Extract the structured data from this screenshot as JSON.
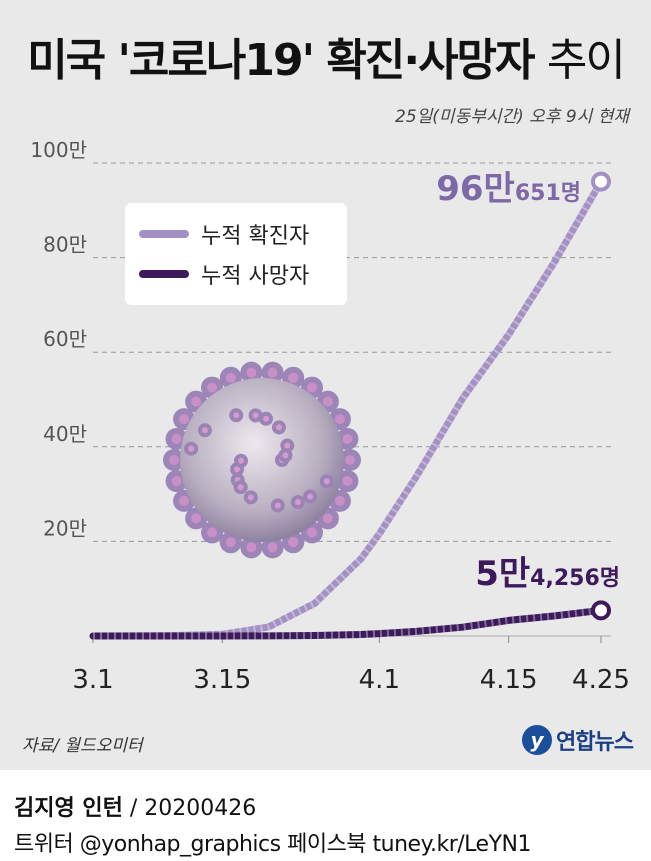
{
  "title_main": "미국 '코로나19' 확진·사망자",
  "title_suffix": "추이",
  "as_of": "25일(미동부시간) 오후 9시 현재",
  "source": "자료/ 월드오미터",
  "logo_text": "연합뉴스",
  "credit": {
    "author": "김지영 인턴",
    "date": " / 20200426"
  },
  "social": "트위터 @yonhap_graphics  페이스북 tuney.kr/LeYN1",
  "colors": {
    "background": "#e9e9e9",
    "confirmed": "#a491c4",
    "deaths": "#3d1a5c",
    "confirmed_label": "#7d68a8",
    "grid": "#999999"
  },
  "illustration": "coronavirus-virus-icon",
  "chart_data": {
    "type": "line",
    "x": [
      "3.1",
      "3.5",
      "3.10",
      "3.15",
      "3.20",
      "3.25",
      "3.30",
      "4.1",
      "4.5",
      "4.10",
      "4.15",
      "4.20",
      "4.25"
    ],
    "xticks": [
      "3.1",
      "3.15",
      "4.1",
      "4.15",
      "4.25"
    ],
    "yticks": [
      "20만",
      "40만",
      "60만",
      "80만",
      "100만"
    ],
    "ylim": [
      0,
      1000000
    ],
    "grid": true,
    "legend_position": "top-left",
    "series": [
      {
        "name": "누적 확진자",
        "values": [
          75,
          220,
          1000,
          3500,
          19000,
          69000,
          163000,
          216000,
          337000,
          502000,
          637000,
          792000,
          960651
        ],
        "end_label_big": "96만",
        "end_label_small": "651명"
      },
      {
        "name": "누적 사망자",
        "values": [
          1,
          11,
          31,
          68,
          260,
          1050,
          3170,
          5150,
          9650,
          18700,
          32900,
          42500,
          54256
        ],
        "end_label_big": "5만",
        "end_label_small": "4,256명"
      }
    ]
  }
}
